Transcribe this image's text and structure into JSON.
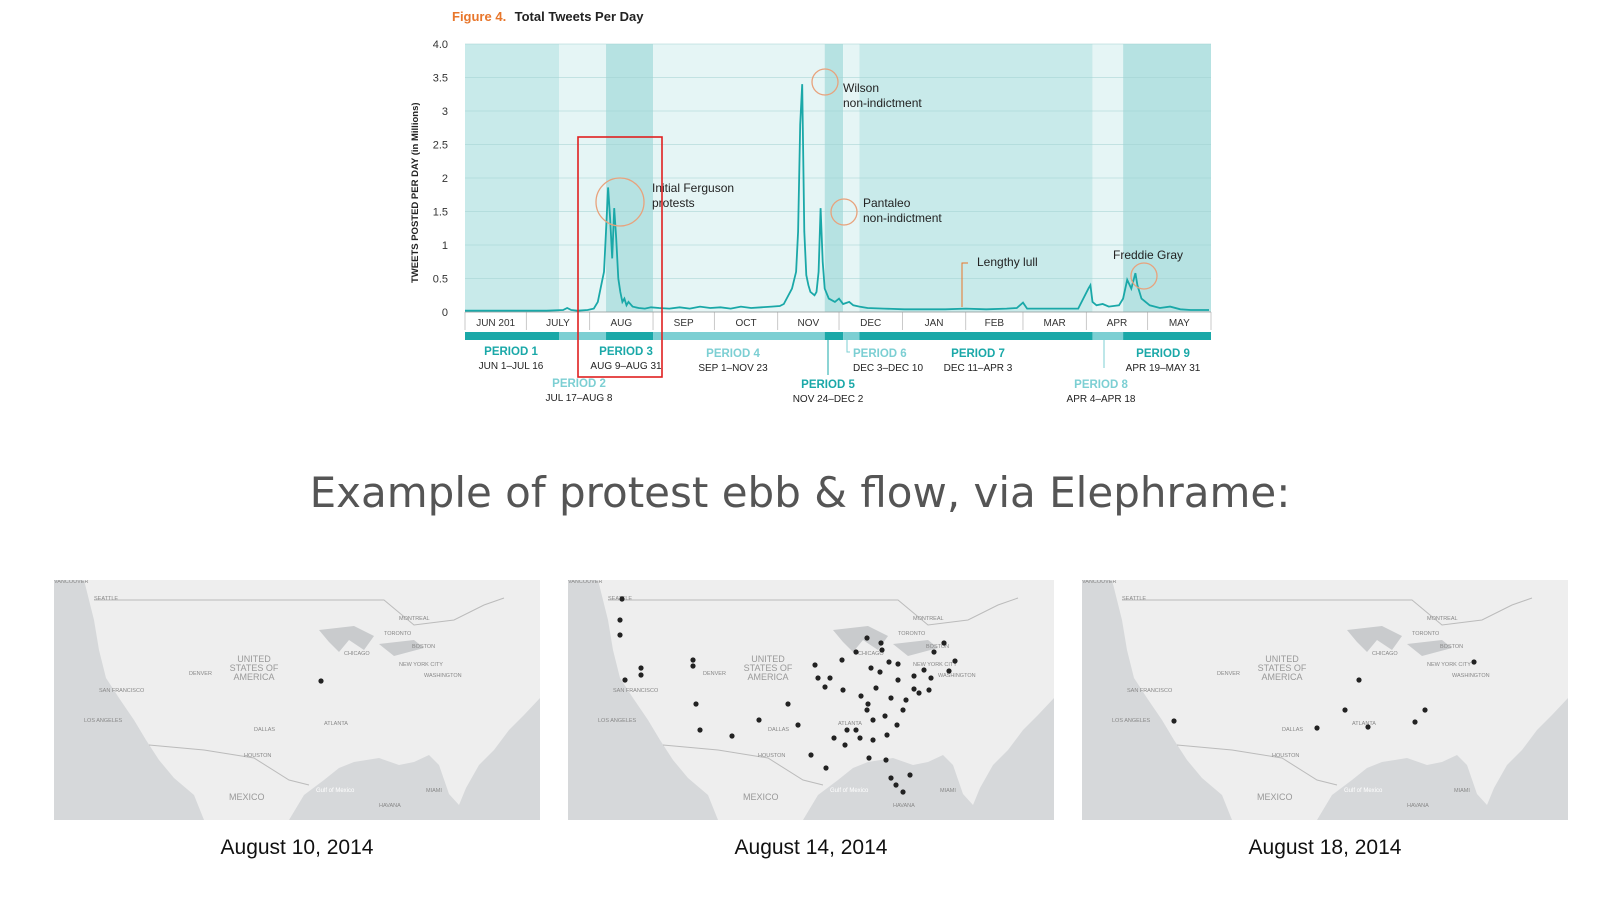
{
  "chart_data": {
    "type": "line",
    "title_prefix": "Figure 4.",
    "title": "Total Tweets Per Day",
    "ylabel": "TWEETS POSTED PER DAY (in Millions)",
    "yticks": [
      "0",
      "0.5",
      "1",
      "1.5",
      "2",
      "2.5",
      "3",
      "3.5",
      "4.0"
    ],
    "ylim": [
      0,
      4
    ],
    "months": [
      "JUN 201",
      "JULY",
      "AUG",
      "SEP",
      "OCT",
      "NOV",
      "DEC",
      "JAN",
      "FEB",
      "MAR",
      "APR",
      "MAY"
    ],
    "x_unit": "day index from Jun 1 2014",
    "series": [
      {
        "points": [
          [
            0,
            0.02
          ],
          [
            10,
            0.02
          ],
          [
            20,
            0.02
          ],
          [
            30,
            0.02
          ],
          [
            40,
            0.02
          ],
          [
            48,
            0.03
          ],
          [
            50,
            0.06
          ],
          [
            52,
            0.03
          ],
          [
            55,
            0.02
          ],
          [
            60,
            0.03
          ],
          [
            63,
            0.05
          ],
          [
            65,
            0.15
          ],
          [
            67,
            0.45
          ],
          [
            68,
            0.6
          ],
          [
            69,
            1.2
          ],
          [
            70,
            1.86
          ],
          [
            71,
            1.4
          ],
          [
            72,
            0.8
          ],
          [
            73,
            1.55
          ],
          [
            74,
            1.1
          ],
          [
            75,
            0.5
          ],
          [
            76,
            0.3
          ],
          [
            77,
            0.15
          ],
          [
            78,
            0.2
          ],
          [
            79,
            0.1
          ],
          [
            80,
            0.15
          ],
          [
            82,
            0.08
          ],
          [
            85,
            0.06
          ],
          [
            88,
            0.05
          ],
          [
            91,
            0.07
          ],
          [
            95,
            0.06
          ],
          [
            100,
            0.05
          ],
          [
            105,
            0.07
          ],
          [
            110,
            0.05
          ],
          [
            115,
            0.08
          ],
          [
            120,
            0.06
          ],
          [
            125,
            0.07
          ],
          [
            130,
            0.05
          ],
          [
            135,
            0.08
          ],
          [
            140,
            0.06
          ],
          [
            145,
            0.07
          ],
          [
            150,
            0.08
          ],
          [
            154,
            0.09
          ],
          [
            156,
            0.12
          ],
          [
            160,
            0.35
          ],
          [
            162,
            0.6
          ],
          [
            163,
            1.2
          ],
          [
            164,
            2.8
          ],
          [
            165,
            3.4
          ],
          [
            166,
            1.2
          ],
          [
            167,
            0.55
          ],
          [
            168,
            0.4
          ],
          [
            169,
            0.3
          ],
          [
            171,
            0.25
          ],
          [
            172,
            0.3
          ],
          [
            173,
            0.6
          ],
          [
            174,
            1.55
          ],
          [
            175,
            0.75
          ],
          [
            176,
            0.35
          ],
          [
            178,
            0.2
          ],
          [
            181,
            0.15
          ],
          [
            183,
            0.2
          ],
          [
            185,
            0.12
          ],
          [
            188,
            0.15
          ],
          [
            190,
            0.1
          ],
          [
            193,
            0.08
          ],
          [
            197,
            0.06
          ],
          [
            205,
            0.05
          ],
          [
            215,
            0.04
          ],
          [
            225,
            0.04
          ],
          [
            235,
            0.04
          ],
          [
            245,
            0.05
          ],
          [
            255,
            0.04
          ],
          [
            265,
            0.05
          ],
          [
            270,
            0.06
          ],
          [
            273,
            0.14
          ],
          [
            275,
            0.05
          ],
          [
            280,
            0.05
          ],
          [
            290,
            0.05
          ],
          [
            300,
            0.05
          ],
          [
            305,
            0.35
          ],
          [
            306,
            0.4
          ],
          [
            307,
            0.15
          ],
          [
            309,
            0.1
          ],
          [
            312,
            0.12
          ],
          [
            315,
            0.08
          ],
          [
            320,
            0.1
          ],
          [
            322,
            0.2
          ],
          [
            324,
            0.48
          ],
          [
            326,
            0.35
          ],
          [
            328,
            0.58
          ],
          [
            329,
            0.4
          ],
          [
            331,
            0.2
          ],
          [
            335,
            0.1
          ],
          [
            340,
            0.06
          ],
          [
            345,
            0.08
          ],
          [
            350,
            0.04
          ],
          [
            355,
            0.03
          ],
          [
            364,
            0.03
          ]
        ]
      }
    ],
    "annotations": [
      {
        "lines": [
          "Initial Ferguson",
          "protests"
        ]
      },
      {
        "lines": [
          "Wilson",
          "non-indictment"
        ]
      },
      {
        "lines": [
          "Pantaleo",
          "non-indictment"
        ]
      },
      {
        "lines": [
          "Lengthy lull"
        ]
      },
      {
        "lines": [
          "Freddie Gray"
        ]
      }
    ],
    "periods": [
      {
        "name": "PERIOD 1",
        "range": "JUN 1–JUL 16",
        "color": "#1aa8a8"
      },
      {
        "name": "PERIOD 2",
        "range": "JUL 17–AUG 8",
        "color": "#7ccfd3"
      },
      {
        "name": "PERIOD 3",
        "range": "AUG 9–AUG 31",
        "color": "#1aa8a8"
      },
      {
        "name": "PERIOD 4",
        "range": "SEP 1–NOV 23",
        "color": "#7ccfd3"
      },
      {
        "name": "PERIOD 5",
        "range": "NOV 24–DEC 2",
        "color": "#1aa8a8"
      },
      {
        "name": "PERIOD 6",
        "range": "DEC 3–DEC 10",
        "color": "#7ccfd3"
      },
      {
        "name": "PERIOD 7",
        "range": "DEC 11–APR 3",
        "color": "#1aa8a8"
      },
      {
        "name": "PERIOD 8",
        "range": "APR 4–APR 18",
        "color": "#7ccfd3"
      },
      {
        "name": "PERIOD 9",
        "range": "APR 19–MAY 31",
        "color": "#1aa8a8"
      }
    ],
    "colors": {
      "line": "#1aa8a8",
      "highlight_box": "#e02020",
      "circle": "#e8a27c"
    }
  },
  "heading": "Example of protest ebb & flow, via Elephrame:",
  "maps": [
    {
      "date": "August 10, 2014"
    },
    {
      "date": "August 14, 2014"
    },
    {
      "date": "August 18, 2014"
    }
  ],
  "map_labels": {
    "country": [
      "UNITED",
      "STATES OF",
      "AMERICA"
    ],
    "mexico": "MEXICO",
    "gulf": "Gulf of Mexico",
    "cities": [
      "SEATTLE",
      "DENVER",
      "SAN FRANCISCO",
      "LOS ANGELES",
      "DALLAS",
      "HOUSTON",
      "ATLANTA",
      "CHICAGO",
      "TORONTO",
      "MONTREAL",
      "BOSTON",
      "NEW YORK CITY",
      "WASHINGTON",
      "MIAMI",
      "HAVANA",
      "VANCOUVER"
    ]
  }
}
